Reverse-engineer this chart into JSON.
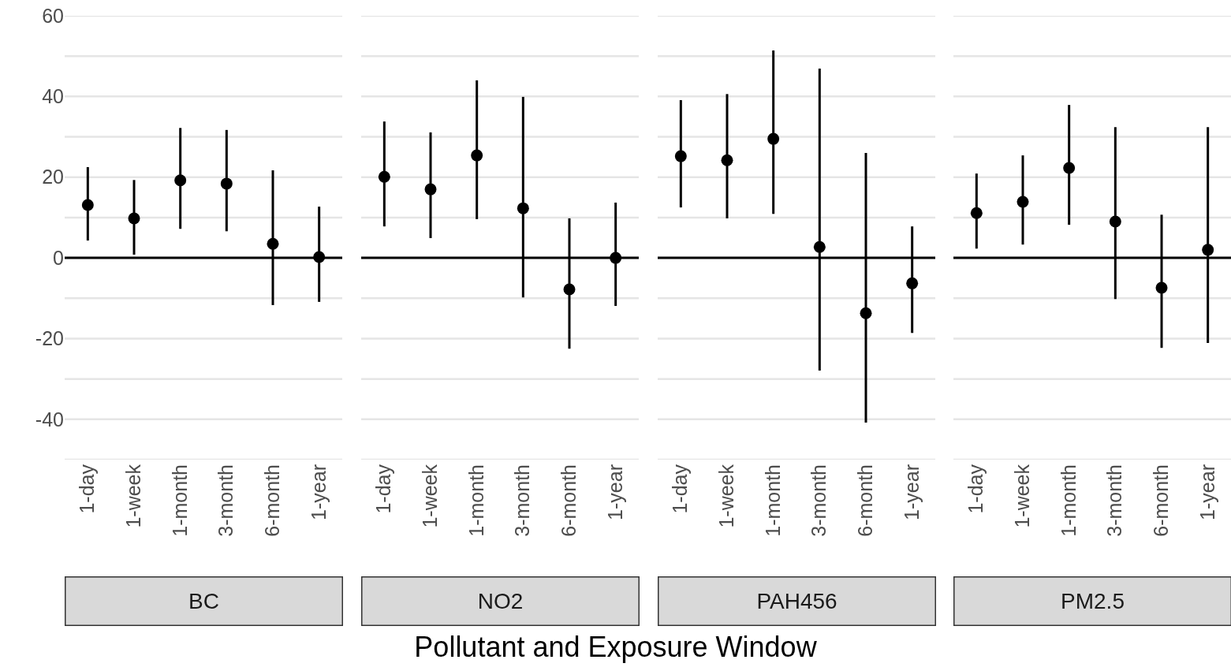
{
  "chart_data": [
    {
      "type": "scatter",
      "title": "BC",
      "xlabel": "Pollutant and Exposure Window",
      "categories": [
        "1-day",
        "1-week",
        "1-month",
        "3-month",
        "6-month",
        "1-year"
      ],
      "series": [
        {
          "color": "#000000",
          "values": [
            13.1,
            9.8,
            19.2,
            18.4,
            3.5,
            0.2
          ],
          "errors": [
            [
              4.3,
              22.5
            ],
            [
              0.8,
              19.3
            ],
            [
              7.2,
              32.2
            ],
            [
              6.6,
              31.7
            ],
            [
              -11.7,
              21.7
            ],
            [
              -10.9,
              12.7
            ]
          ]
        }
      ],
      "ylim": [
        -50,
        60
      ],
      "yticks": [
        {
          "value": -50,
          "label": null
        },
        -40,
        {
          "value": -30,
          "label": null
        },
        -20,
        {
          "value": -10,
          "label": null
        },
        0,
        {
          "value": 10,
          "label": null
        },
        20,
        {
          "value": 30,
          "label": null
        },
        40,
        {
          "value": 50,
          "label": null
        },
        60
      ],
      "ref_lines": [
        {
          "axis": "y",
          "value": 0,
          "color": "#000000"
        }
      ],
      "grid": "y",
      "marker": "circle"
    },
    {
      "type": "scatter",
      "title": "NO2",
      "categories": [
        "1-day",
        "1-week",
        "1-month",
        "3-month",
        "6-month",
        "1-year"
      ],
      "series": [
        {
          "color": "#000000",
          "values": [
            20.1,
            17.0,
            25.4,
            12.3,
            -7.8,
            0
          ],
          "errors": [
            [
              7.8,
              33.8
            ],
            [
              4.9,
              31.1
            ],
            [
              9.6,
              44
            ],
            [
              -9.8,
              39.9
            ],
            [
              -22.5,
              9.8
            ],
            [
              -11.9,
              13.7
            ]
          ]
        }
      ],
      "ylim": [
        -50,
        60
      ],
      "yticks": [
        {
          "value": -50,
          "label": null
        },
        -40,
        {
          "value": -30,
          "label": null
        },
        -20,
        {
          "value": -10,
          "label": null
        },
        0,
        {
          "value": 10,
          "label": null
        },
        20,
        {
          "value": 30,
          "label": null
        },
        40,
        {
          "value": 50,
          "label": null
        },
        60
      ],
      "ref_lines": [
        {
          "axis": "y",
          "value": 0,
          "color": "#000000"
        }
      ],
      "grid": "y",
      "marker": "circle",
      "tick_labels": "x"
    },
    {
      "type": "scatter",
      "title": "PAH456",
      "categories": [
        "1-day",
        "1-week",
        "1-month",
        "3-month",
        "6-month",
        "1-year"
      ],
      "series": [
        {
          "color": "#000000",
          "values": [
            25.2,
            24.2,
            29.5,
            2.7,
            -13.7,
            -6.3
          ],
          "errors": [
            [
              12.5,
              39.1
            ],
            [
              9.8,
              40.6
            ],
            [
              10.9,
              51.4
            ],
            [
              -27.9,
              46.9
            ],
            [
              -40.8,
              26
            ],
            [
              -18.6,
              7.8
            ]
          ]
        }
      ],
      "ylim": [
        -50,
        60
      ],
      "yticks": [
        {
          "value": -50,
          "label": null
        },
        -40,
        {
          "value": -30,
          "label": null
        },
        -20,
        {
          "value": -10,
          "label": null
        },
        0,
        {
          "value": 10,
          "label": null
        },
        20,
        {
          "value": 30,
          "label": null
        },
        40,
        {
          "value": 50,
          "label": null
        },
        60
      ],
      "ref_lines": [
        {
          "axis": "y",
          "value": 0,
          "color": "#000000"
        }
      ],
      "grid": "y",
      "marker": "circle",
      "tick_labels": "x"
    },
    {
      "type": "scatter",
      "title": "PM2.5",
      "categories": [
        "1-day",
        "1-week",
        "1-month",
        "3-month",
        "6-month",
        "1-year"
      ],
      "series": [
        {
          "color": "#000000",
          "values": [
            11.1,
            13.9,
            22.3,
            9.0,
            -7.4,
            2.0
          ],
          "errors": [
            [
              2.3,
              20.9
            ],
            [
              3.3,
              25.4
            ],
            [
              8.2,
              37.9
            ],
            [
              -10.2,
              32.4
            ],
            [
              -22.3,
              10.7
            ],
            [
              -21.1,
              32.4
            ]
          ]
        }
      ],
      "ylim": [
        -50,
        60
      ],
      "yticks": [
        {
          "value": -50,
          "label": null
        },
        -40,
        {
          "value": -30,
          "label": null
        },
        -20,
        {
          "value": -10,
          "label": null
        },
        0,
        {
          "value": 10,
          "label": null
        },
        20,
        {
          "value": 30,
          "label": null
        },
        40,
        {
          "value": 50,
          "label": null
        },
        60
      ],
      "ref_lines": [
        {
          "axis": "y",
          "value": 0,
          "color": "#000000"
        }
      ],
      "grid": "y",
      "marker": "circle",
      "tick_labels": "x"
    }
  ]
}
